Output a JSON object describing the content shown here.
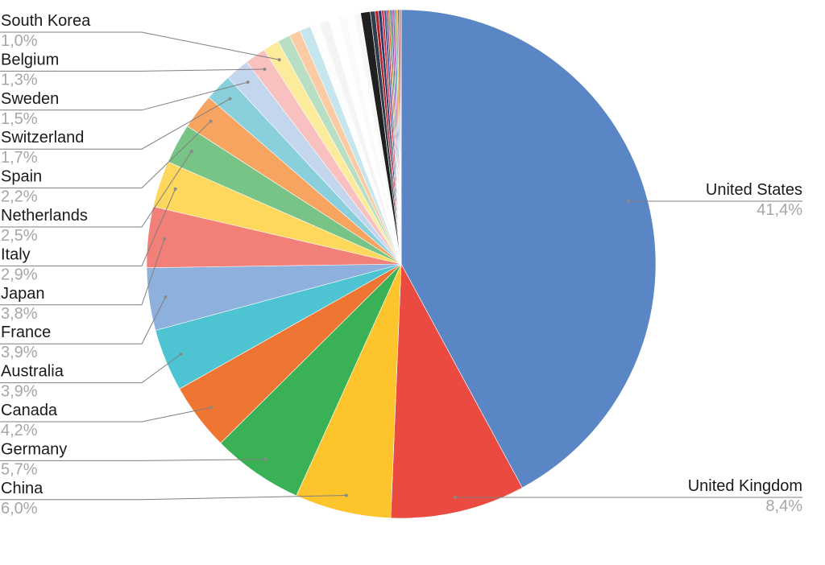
{
  "chart_data": {
    "type": "pie",
    "title": "",
    "slices": [
      {
        "label": "United States",
        "value_label": "41,4%",
        "value": 41.4,
        "color": "#5b86c5",
        "labeled": true
      },
      {
        "label": "United Kingdom",
        "value_label": "8,4%",
        "value": 8.4,
        "color": "#ea4a40",
        "labeled": true
      },
      {
        "label": "China",
        "value_label": "6,0%",
        "value": 6.0,
        "color": "#fdc42c",
        "labeled": true
      },
      {
        "label": "Germany",
        "value_label": "5,7%",
        "value": 5.7,
        "color": "#3bb156",
        "labeled": true
      },
      {
        "label": "Canada",
        "value_label": "4,2%",
        "value": 4.2,
        "color": "#ef7533",
        "labeled": true
      },
      {
        "label": "Australia",
        "value_label": "3,9%",
        "value": 3.9,
        "color": "#4ec4d3",
        "labeled": true
      },
      {
        "label": "France",
        "value_label": "3,9%",
        "value": 3.9,
        "color": "#8eb0dc",
        "labeled": true
      },
      {
        "label": "Japan",
        "value_label": "3,8%",
        "value": 3.8,
        "color": "#f27f78",
        "labeled": true
      },
      {
        "label": "Italy",
        "value_label": "2,9%",
        "value": 2.9,
        "color": "#fdd85c",
        "labeled": true
      },
      {
        "label": "Netherlands",
        "value_label": "2,5%",
        "value": 2.5,
        "color": "#77c486",
        "labeled": true
      },
      {
        "label": "Spain",
        "value_label": "2,2%",
        "value": 2.2,
        "color": "#f6a45f",
        "labeled": true
      },
      {
        "label": "Switzerland",
        "value_label": "1,7%",
        "value": 1.7,
        "color": "#89d0dc",
        "labeled": true
      },
      {
        "label": "Sweden",
        "value_label": "1,5%",
        "value": 1.5,
        "color": "#c4d5ee",
        "labeled": true
      },
      {
        "label": "Belgium",
        "value_label": "1,3%",
        "value": 1.3,
        "color": "#f8c1c0",
        "labeled": true
      },
      {
        "label": "South Korea",
        "value_label": "1,0%",
        "value": 1.0,
        "color": "#fdeb9c",
        "labeled": true
      },
      {
        "label": "",
        "value_label": "",
        "value": 0.8,
        "color": "#b8dfc4",
        "labeled": false
      },
      {
        "label": "",
        "value_label": "",
        "value": 0.7,
        "color": "#fbcba4",
        "labeled": false
      },
      {
        "label": "",
        "value_label": "",
        "value": 0.7,
        "color": "#c6e6ee",
        "labeled": false
      },
      {
        "label": "",
        "value_label": "",
        "value": 0.6,
        "color": "#fdfdfd",
        "labeled": false
      },
      {
        "label": "",
        "value_label": "",
        "value": 0.6,
        "color": "#f4f4f4",
        "labeled": false
      },
      {
        "label": "",
        "value_label": "",
        "value": 0.6,
        "color": "#ffffff",
        "labeled": false
      },
      {
        "label": "",
        "value_label": "",
        "value": 0.5,
        "color": "#fafafa",
        "labeled": false
      },
      {
        "label": "",
        "value_label": "",
        "value": 0.5,
        "color": "#fefefe",
        "labeled": false
      },
      {
        "label": "",
        "value_label": "",
        "value": 0.4,
        "color": "#f7f7f7",
        "labeled": false
      },
      {
        "label": "",
        "value_label": "",
        "value": 0.6,
        "color": "#1f1f1f",
        "labeled": false
      },
      {
        "label": "",
        "value_label": "",
        "value": 0.3,
        "color": "#2f3d4a",
        "labeled": false
      },
      {
        "label": "",
        "value_label": "",
        "value": 0.2,
        "color": "#b2202a",
        "labeled": false
      },
      {
        "label": "",
        "value_label": "",
        "value": 0.2,
        "color": "#2a3a6b",
        "labeled": false
      },
      {
        "label": "",
        "value_label": "",
        "value": 0.15,
        "color": "#d3333f",
        "labeled": false
      },
      {
        "label": "",
        "value_label": "",
        "value": 0.15,
        "color": "#3a5a9a",
        "labeled": false
      },
      {
        "label": "",
        "value_label": "",
        "value": 0.1,
        "color": "#8a2b6d",
        "labeled": false
      },
      {
        "label": "",
        "value_label": "",
        "value": 0.1,
        "color": "#d46a2a",
        "labeled": false
      },
      {
        "label": "",
        "value_label": "",
        "value": 0.1,
        "color": "#2c8a5a",
        "labeled": false
      },
      {
        "label": "",
        "value_label": "",
        "value": 0.1,
        "color": "#7a4ab0",
        "labeled": false
      },
      {
        "label": "",
        "value_label": "",
        "value": 0.1,
        "color": "#c23a8a",
        "labeled": false
      },
      {
        "label": "",
        "value_label": "",
        "value": 0.1,
        "color": "#3aa0c0",
        "labeled": false
      },
      {
        "label": "",
        "value_label": "",
        "value": 0.1,
        "color": "#e0a020",
        "labeled": false
      },
      {
        "label": "",
        "value_label": "",
        "value": 0.08,
        "color": "#5a5a5a",
        "labeled": false
      },
      {
        "label": "",
        "value_label": "",
        "value": 0.08,
        "color": "#9a3030",
        "labeled": false
      },
      {
        "label": "",
        "value_label": "",
        "value": 0.05,
        "color": "#4060a0",
        "labeled": false
      }
    ],
    "start_angle_deg": 0,
    "direction": "clockwise",
    "legend": "none"
  }
}
